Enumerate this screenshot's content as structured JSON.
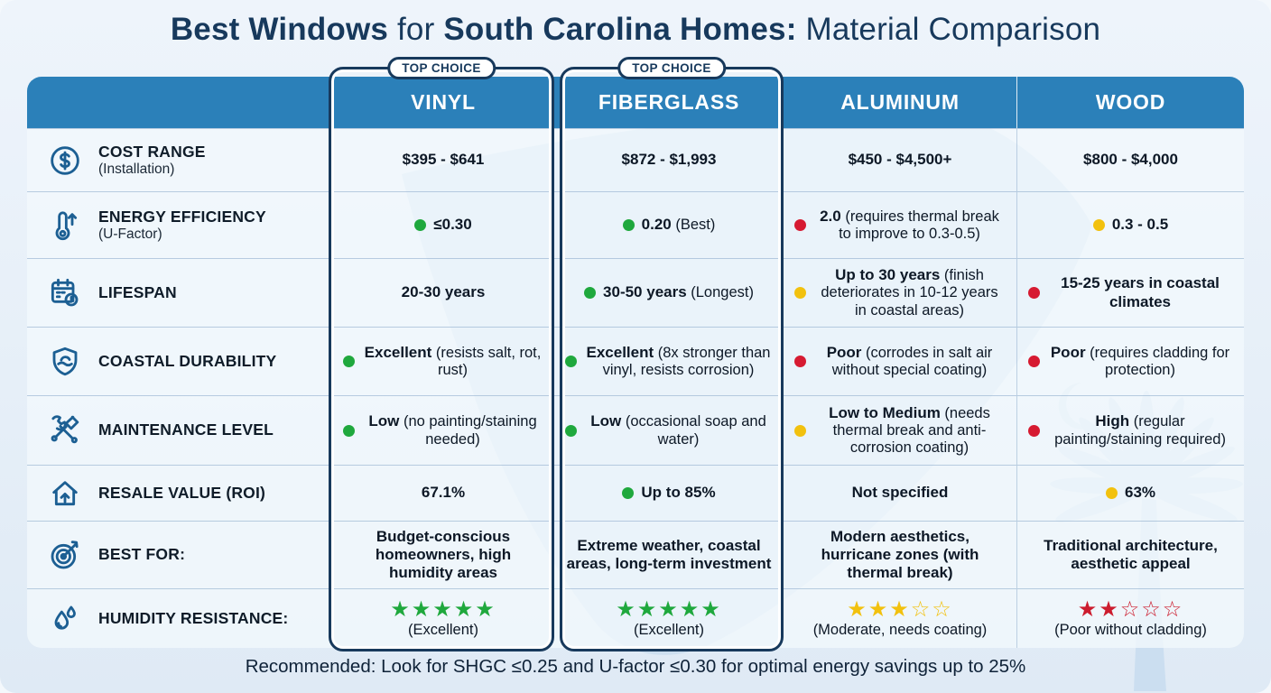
{
  "title": {
    "seg1": "Best Windows",
    "seg2": " for ",
    "seg3": "South Carolina Homes:",
    "seg4": " Material Comparison"
  },
  "badge_label": "TOP CHOICE",
  "footer": "Recommended: Look for SHGC ≤0.25 and U-factor ≤0.30 for optimal energy savings up to 25%",
  "colors": {
    "header_blue": "#2b80b9",
    "navy": "#17395c",
    "green": "#1fa83d",
    "yellow": "#f2c10e",
    "red": "#d61a31",
    "silhouette_blue": "#c9ddef"
  },
  "chart_data": {
    "type": "table",
    "title": "Best Windows for South Carolina Homes: Material Comparison",
    "columns": [
      "VINYL",
      "FIBERGLASS",
      "ALUMINUM",
      "WOOD"
    ],
    "top_choice_columns": [
      "VINYL",
      "FIBERGLASS"
    ],
    "rows": [
      {
        "icon": "dollar-circle",
        "label": "COST RANGE",
        "sub": "(Installation)",
        "cells": [
          {
            "strong": "$395 - $641"
          },
          {
            "strong": "$872 - $1,993"
          },
          {
            "strong": "$450 - $4,500+"
          },
          {
            "strong": "$800 - $4,000"
          }
        ]
      },
      {
        "icon": "thermometer-up",
        "label": "ENERGY EFFICIENCY",
        "sub": "(U-Factor)",
        "cells": [
          {
            "dot": "green",
            "strong": "≤0.30"
          },
          {
            "dot": "green",
            "strong": "0.20",
            "rest": " (Best)"
          },
          {
            "dot": "red",
            "strong": "2.0",
            "rest": " (requires thermal break to improve to 0.3-0.5)"
          },
          {
            "dot": "yellow",
            "strong": "0.3 - 0.5"
          }
        ]
      },
      {
        "icon": "calendar-clock",
        "label": "LIFESPAN",
        "cells": [
          {
            "strong": "20-30 years"
          },
          {
            "dot": "green",
            "strong": "30-50 years",
            "rest": " (Longest)"
          },
          {
            "dot": "yellow",
            "strong": "Up to 30 years",
            "rest": " (finish deteriorates in 10-12 years in coastal areas)"
          },
          {
            "dot": "red",
            "strong": "15-25 years in coastal climates"
          }
        ]
      },
      {
        "icon": "shield-wave",
        "label": "COASTAL DURABILITY",
        "cells": [
          {
            "dot": "green",
            "strong": "Excellent",
            "rest": " (resists salt, rot, rust)"
          },
          {
            "dot": "green",
            "strong": "Excellent",
            "rest": " (8x stronger than vinyl, resists corrosion)"
          },
          {
            "dot": "red",
            "strong": "Poor",
            "rest": " (corrodes in salt air without special coating)"
          },
          {
            "dot": "red",
            "strong": "Poor",
            "rest": " (requires cladding for protection)"
          }
        ]
      },
      {
        "icon": "wrench-brush",
        "label": "MAINTENANCE LEVEL",
        "cells": [
          {
            "dot": "green",
            "strong": "Low",
            "rest": " (no painting/staining needed)"
          },
          {
            "dot": "green",
            "strong": "Low",
            "rest": " (occasional soap and water)"
          },
          {
            "dot": "yellow",
            "strong": "Low to Medium",
            "rest": " (needs thermal break and anti-corrosion coating)"
          },
          {
            "dot": "red",
            "strong": "High",
            "rest": " (regular painting/staining required)"
          }
        ]
      },
      {
        "icon": "house-arrow",
        "label": "RESALE VALUE (ROI)",
        "cells": [
          {
            "strong": "67.1%"
          },
          {
            "dot": "green",
            "strong": "Up to 85%"
          },
          {
            "strong": "Not specified"
          },
          {
            "dot": "yellow",
            "strong": "63%"
          }
        ]
      },
      {
        "icon": "target-arrow",
        "label": "BEST FOR:",
        "cells": [
          {
            "strong": "Budget-conscious homeowners, high humidity areas"
          },
          {
            "strong": "Extreme weather, coastal areas, long-term investment"
          },
          {
            "strong": "Modern aesthetics, hurricane zones (with thermal break)"
          },
          {
            "strong": "Traditional architecture, aesthetic appeal"
          }
        ]
      },
      {
        "icon": "water-drops",
        "label": "HUMIDITY RESISTANCE:",
        "cells": [
          {
            "stars": {
              "filled": 5,
              "total": 5,
              "color": "green"
            },
            "caption": "(Excellent)"
          },
          {
            "stars": {
              "filled": 5,
              "total": 5,
              "color": "green"
            },
            "caption": "(Excellent)"
          },
          {
            "stars": {
              "filled": 3,
              "total": 5,
              "color": "yellow"
            },
            "caption": "(Moderate, needs coating)"
          },
          {
            "stars": {
              "filled": 2,
              "total": 5,
              "color": "red"
            },
            "caption": "(Poor without cladding)"
          }
        ]
      }
    ]
  }
}
